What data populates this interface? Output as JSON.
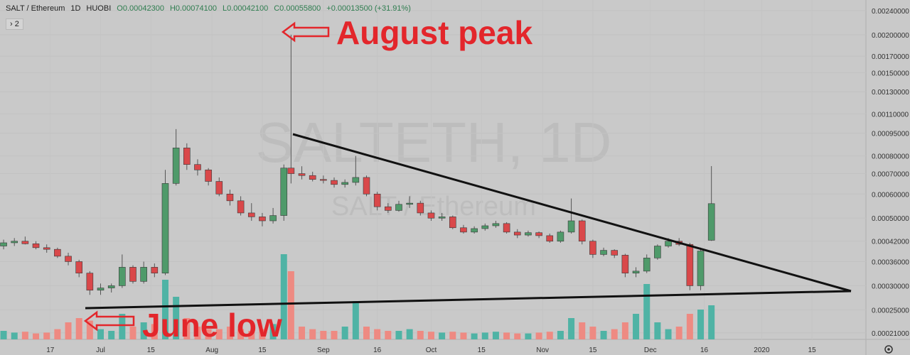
{
  "chart_data": {
    "type": "candlestick",
    "header": {
      "symbol": "SALT / Ethereum",
      "interval": "1D",
      "exchange": "HUOBI",
      "open": "O0.00042300",
      "high": "H0.00074100",
      "low": "L0.00042100",
      "close": "C0.00055800",
      "change": "+0.00013500 (+31.91%)",
      "indicator": "› 2"
    },
    "watermark": "SALTETH, 1D",
    "watermark_sub": "SALT / Ethereum",
    "annotations": [
      "August peak",
      "June low"
    ],
    "log_scale": true,
    "up_color": "#4f9a6a",
    "down_color": "#d9484a",
    "volume_up_color": "#4fb3a5",
    "volume_down_color": "#ee8a82",
    "xlim": [
      "2019-06-03",
      "2020-01-30"
    ],
    "xticks": [
      {
        "value": "2019-06-17",
        "label": "17"
      },
      {
        "value": "2019-07-01",
        "label": "Jul"
      },
      {
        "value": "2019-07-15",
        "label": "15"
      },
      {
        "value": "2019-08-01",
        "label": "Aug"
      },
      {
        "value": "2019-08-15",
        "label": "15"
      },
      {
        "value": "2019-09-01",
        "label": "Sep"
      },
      {
        "value": "2019-09-16",
        "label": "16"
      },
      {
        "value": "2019-10-01",
        "label": "Oct"
      },
      {
        "value": "2019-10-15",
        "label": "15"
      },
      {
        "value": "2019-11-01",
        "label": "Nov"
      },
      {
        "value": "2019-11-15",
        "label": "15"
      },
      {
        "value": "2019-12-01",
        "label": "Dec"
      },
      {
        "value": "2019-12-16",
        "label": "16"
      },
      {
        "value": "2020-01-01",
        "label": "2020"
      },
      {
        "value": "2020-01-15",
        "label": "15"
      }
    ],
    "ylim": [
      0.0002,
      0.0026
    ],
    "yticks": [
      {
        "value": 0.00021,
        "label": "0.00021000"
      },
      {
        "value": 0.00025,
        "label": "0.00025000"
      },
      {
        "value": 0.0003,
        "label": "0.00030000"
      },
      {
        "value": 0.00036,
        "label": "0.00036000"
      },
      {
        "value": 0.00042,
        "label": "0.00042000"
      },
      {
        "value": 0.0005,
        "label": "0.00050000"
      },
      {
        "value": 0.0006,
        "label": "0.00060000"
      },
      {
        "value": 0.0007,
        "label": "0.00070000"
      },
      {
        "value": 0.0008,
        "label": "0.00080000"
      },
      {
        "value": 0.00095,
        "label": "0.00095000"
      },
      {
        "value": 0.0011,
        "label": "0.00110000"
      },
      {
        "value": 0.0013,
        "label": "0.00130000"
      },
      {
        "value": 0.0015,
        "label": "0.00150000"
      },
      {
        "value": 0.0017,
        "label": "0.00170000"
      },
      {
        "value": 0.002,
        "label": "0.00200000"
      },
      {
        "value": 0.0024,
        "label": "0.00240000"
      }
    ],
    "x": [
      "2019-06-04",
      "2019-06-07",
      "2019-06-10",
      "2019-06-13",
      "2019-06-16",
      "2019-06-19",
      "2019-06-22",
      "2019-06-25",
      "2019-06-28",
      "2019-07-01",
      "2019-07-04",
      "2019-07-07",
      "2019-07-10",
      "2019-07-13",
      "2019-07-16",
      "2019-07-19",
      "2019-07-22",
      "2019-07-25",
      "2019-07-28",
      "2019-07-31",
      "2019-08-03",
      "2019-08-06",
      "2019-08-09",
      "2019-08-12",
      "2019-08-15",
      "2019-08-18",
      "2019-08-21",
      "2019-08-23",
      "2019-08-26",
      "2019-08-29",
      "2019-09-01",
      "2019-09-04",
      "2019-09-07",
      "2019-09-10",
      "2019-09-13",
      "2019-09-16",
      "2019-09-19",
      "2019-09-22",
      "2019-09-25",
      "2019-09-28",
      "2019-10-01",
      "2019-10-04",
      "2019-10-07",
      "2019-10-10",
      "2019-10-13",
      "2019-10-16",
      "2019-10-19",
      "2019-10-22",
      "2019-10-25",
      "2019-10-28",
      "2019-10-31",
      "2019-11-03",
      "2019-11-06",
      "2019-11-09",
      "2019-11-12",
      "2019-11-15",
      "2019-11-18",
      "2019-11-21",
      "2019-11-24",
      "2019-11-27",
      "2019-11-30",
      "2019-12-03",
      "2019-12-06",
      "2019-12-09",
      "2019-12-12",
      "2019-12-15",
      "2019-12-18"
    ],
    "open": [
      0.000405,
      0.000415,
      0.00042,
      0.000412,
      0.0004,
      0.000395,
      0.000375,
      0.00036,
      0.00033,
      0.00029,
      0.000295,
      0.0003,
      0.000345,
      0.00031,
      0.000345,
      0.00033,
      0.00065,
      0.00085,
      0.00075,
      0.00072,
      0.00066,
      0.0006,
      0.00057,
      0.00052,
      0.000505,
      0.00049,
      0.00051,
      0.00073,
      0.0007,
      0.00069,
      0.00067,
      0.000665,
      0.000645,
      0.000655,
      0.00068,
      0.0006,
      0.000545,
      0.00053,
      0.000555,
      0.00056,
      0.00052,
      0.0005,
      0.000505,
      0.000465,
      0.00045,
      0.000462,
      0.000472,
      0.00048,
      0.00045,
      0.00044,
      0.000448,
      0.000438,
      0.00042,
      0.00045,
      0.00049,
      0.00042,
      0.00038,
      0.000392,
      0.000378,
      0.00033,
      0.000335,
      0.00037,
      0.000405,
      0.00042,
      0.00041,
      0.0003,
      0.000423
    ],
    "high": [
      0.000425,
      0.00043,
      0.000435,
      0.00042,
      0.00041,
      0.0004,
      0.000385,
      0.000365,
      0.000335,
      0.000305,
      0.000305,
      0.00038,
      0.00035,
      0.00036,
      0.000355,
      0.00072,
      0.00098,
      0.00088,
      0.00078,
      0.00073,
      0.00068,
      0.00062,
      0.00059,
      0.00056,
      0.00052,
      0.00054,
      0.00075,
      0.002,
      0.00074,
      0.00071,
      0.00069,
      0.00068,
      0.00067,
      0.0008,
      0.00069,
      0.00061,
      0.00056,
      0.00057,
      0.00059,
      0.00057,
      0.00053,
      0.00052,
      0.00051,
      0.000475,
      0.00047,
      0.00048,
      0.00049,
      0.000485,
      0.00046,
      0.000455,
      0.000452,
      0.000445,
      0.000455,
      0.00058,
      0.000495,
      0.000425,
      0.0004,
      0.000395,
      0.000382,
      0.000345,
      0.00038,
      0.00041,
      0.00043,
      0.00043,
      0.000415,
      0.0004,
      0.000741
    ],
    "low": [
      0.000395,
      0.000405,
      0.00041,
      0.000395,
      0.000385,
      0.00037,
      0.00035,
      0.00032,
      0.00028,
      0.00028,
      0.000285,
      0.000295,
      0.000305,
      0.000305,
      0.00032,
      0.000325,
      0.00064,
      0.00072,
      0.00069,
      0.00064,
      0.00059,
      0.00055,
      0.00051,
      0.00049,
      0.00047,
      0.00048,
      0.00049,
      0.00065,
      0.00067,
      0.00066,
      0.00065,
      0.00063,
      0.00063,
      0.00064,
      0.00059,
      0.00053,
      0.00052,
      0.000525,
      0.00054,
      0.00051,
      0.00049,
      0.00049,
      0.00046,
      0.000445,
      0.000445,
      0.000455,
      0.000465,
      0.000445,
      0.00043,
      0.000435,
      0.00043,
      0.000415,
      0.000415,
      0.000445,
      0.00041,
      0.00037,
      0.000375,
      0.00037,
      0.00032,
      0.00032,
      0.00033,
      0.000365,
      0.0004,
      0.000405,
      0.00029,
      0.00029,
      0.000421
    ],
    "close": [
      0.000415,
      0.00042,
      0.000412,
      0.0004,
      0.000395,
      0.000375,
      0.00036,
      0.00033,
      0.00029,
      0.000295,
      0.0003,
      0.000345,
      0.00031,
      0.000345,
      0.00033,
      0.00065,
      0.00085,
      0.00075,
      0.00072,
      0.00066,
      0.0006,
      0.00057,
      0.00052,
      0.000505,
      0.00049,
      0.00051,
      0.00073,
      0.0007,
      0.00069,
      0.00067,
      0.000665,
      0.000645,
      0.000655,
      0.00068,
      0.0006,
      0.000545,
      0.00053,
      0.000555,
      0.00056,
      0.00052,
      0.0005,
      0.000505,
      0.000465,
      0.00045,
      0.000462,
      0.000472,
      0.00048,
      0.00045,
      0.00044,
      0.000448,
      0.000438,
      0.00042,
      0.00045,
      0.00049,
      0.00042,
      0.00038,
      0.000392,
      0.000378,
      0.00033,
      0.000335,
      0.00037,
      0.000405,
      0.00042,
      0.00041,
      0.0003,
      0.00039,
      0.000558
    ],
    "volume": [
      10,
      8,
      9,
      7,
      8,
      12,
      20,
      25,
      22,
      12,
      10,
      30,
      15,
      20,
      18,
      70,
      50,
      25,
      15,
      12,
      12,
      15,
      12,
      10,
      12,
      18,
      100,
      80,
      15,
      12,
      10,
      10,
      15,
      45,
      15,
      12,
      10,
      10,
      12,
      10,
      9,
      8,
      9,
      8,
      7,
      8,
      9,
      8,
      7,
      7,
      8,
      9,
      10,
      25,
      20,
      15,
      10,
      12,
      20,
      30,
      65,
      20,
      12,
      15,
      30,
      35,
      40
    ]
  }
}
